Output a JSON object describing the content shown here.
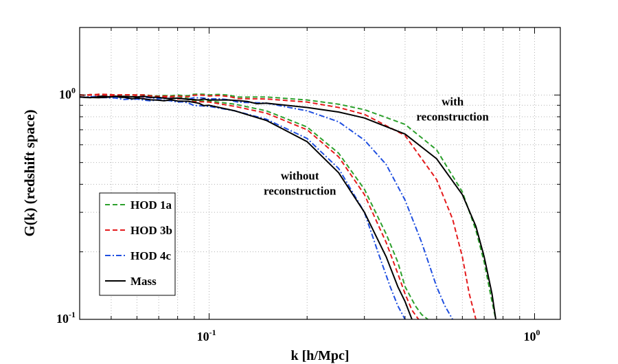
{
  "chart_data": {
    "type": "line",
    "ylabel": "G(k) (redshift space)",
    "xlabel": "k [h/Mpc]",
    "xscale": "log",
    "yscale": "log",
    "xlim": [
      0.04,
      1.2
    ],
    "ylim": [
      0.1,
      2.0
    ],
    "grid": true,
    "legend_position": "lower-left",
    "x_ticks": [
      {
        "value": 0.1,
        "base": "10",
        "exp": "-1"
      },
      {
        "value": 1.0,
        "base": "10",
        "exp": "0"
      }
    ],
    "y_ticks": [
      {
        "value": 0.1,
        "base": "10",
        "exp": "-1"
      },
      {
        "value": 1.0,
        "base": "10",
        "exp": "0"
      }
    ],
    "annotations": [
      {
        "lines": [
          "with",
          "reconstruction"
        ],
        "k": 0.56,
        "G": 0.9
      },
      {
        "lines": [
          "without",
          "reconstruction"
        ],
        "k": 0.19,
        "G": 0.42
      }
    ],
    "series": [
      {
        "name": "HOD 1a",
        "color": "#2ca02c",
        "dash": "dash",
        "without": {
          "k": [
            0.04,
            0.05,
            0.06,
            0.08,
            0.1,
            0.12,
            0.15,
            0.2,
            0.25,
            0.3,
            0.35,
            0.38,
            0.4,
            0.43,
            0.45,
            0.47
          ],
          "G": [
            1.0,
            0.99,
            0.99,
            0.97,
            0.94,
            0.91,
            0.85,
            0.72,
            0.55,
            0.38,
            0.24,
            0.18,
            0.14,
            0.115,
            0.105,
            0.1
          ]
        },
        "with": {
          "k": [
            0.04,
            0.06,
            0.08,
            0.1,
            0.15,
            0.2,
            0.25,
            0.3,
            0.4,
            0.5,
            0.6,
            0.66,
            0.7,
            0.74,
            0.76
          ],
          "G": [
            1.0,
            1.0,
            1.0,
            1.0,
            0.98,
            0.95,
            0.91,
            0.86,
            0.74,
            0.57,
            0.37,
            0.25,
            0.18,
            0.12,
            0.1
          ]
        }
      },
      {
        "name": "HOD 3b",
        "color": "#e41a1c",
        "dash": "dash",
        "without": {
          "k": [
            0.04,
            0.05,
            0.06,
            0.08,
            0.1,
            0.12,
            0.15,
            0.2,
            0.25,
            0.3,
            0.35,
            0.38,
            0.4,
            0.42,
            0.44
          ],
          "G": [
            1.0,
            0.99,
            0.99,
            0.96,
            0.93,
            0.89,
            0.83,
            0.7,
            0.53,
            0.36,
            0.22,
            0.16,
            0.13,
            0.11,
            0.1
          ]
        },
        "with": {
          "k": [
            0.04,
            0.06,
            0.08,
            0.1,
            0.15,
            0.2,
            0.25,
            0.3,
            0.4,
            0.5,
            0.56,
            0.6,
            0.63,
            0.66
          ],
          "G": [
            1.0,
            1.0,
            0.99,
            0.99,
            0.96,
            0.93,
            0.88,
            0.82,
            0.66,
            0.42,
            0.28,
            0.19,
            0.13,
            0.1
          ]
        }
      },
      {
        "name": "HOD 4c",
        "color": "#1f4fe0",
        "dash": "dashdot",
        "without": {
          "k": [
            0.04,
            0.05,
            0.06,
            0.08,
            0.1,
            0.12,
            0.15,
            0.2,
            0.25,
            0.3,
            0.33,
            0.36,
            0.38,
            0.4
          ],
          "G": [
            0.98,
            0.97,
            0.96,
            0.93,
            0.89,
            0.85,
            0.78,
            0.64,
            0.47,
            0.3,
            0.2,
            0.14,
            0.115,
            0.1
          ]
        },
        "with": {
          "k": [
            0.04,
            0.06,
            0.08,
            0.1,
            0.15,
            0.2,
            0.25,
            0.3,
            0.35,
            0.4,
            0.45,
            0.5,
            0.53,
            0.56
          ],
          "G": [
            0.98,
            0.98,
            0.97,
            0.96,
            0.92,
            0.85,
            0.76,
            0.63,
            0.49,
            0.34,
            0.22,
            0.14,
            0.115,
            0.1
          ]
        }
      },
      {
        "name": "Mass",
        "color": "#000000",
        "dash": "solid",
        "without": {
          "k": [
            0.04,
            0.05,
            0.06,
            0.08,
            0.1,
            0.12,
            0.15,
            0.2,
            0.25,
            0.3,
            0.35,
            0.38,
            0.4,
            0.42
          ],
          "G": [
            0.98,
            0.98,
            0.97,
            0.94,
            0.9,
            0.85,
            0.77,
            0.62,
            0.45,
            0.3,
            0.19,
            0.14,
            0.12,
            0.1
          ]
        },
        "with": {
          "k": [
            0.04,
            0.06,
            0.08,
            0.1,
            0.15,
            0.2,
            0.25,
            0.3,
            0.4,
            0.5,
            0.6,
            0.66,
            0.7,
            0.74,
            0.76
          ],
          "G": [
            0.98,
            0.98,
            0.97,
            0.95,
            0.92,
            0.88,
            0.84,
            0.79,
            0.67,
            0.52,
            0.36,
            0.26,
            0.19,
            0.13,
            0.1
          ]
        }
      }
    ]
  }
}
